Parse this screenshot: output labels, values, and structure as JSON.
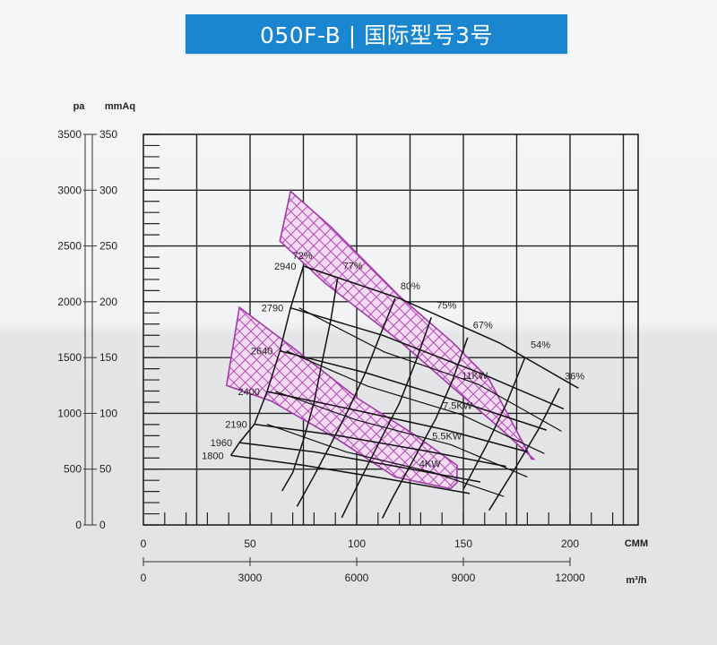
{
  "title": "050F-B | 国际型号3号",
  "chart_data": {
    "type": "line",
    "title": "050F-B | 国际型号3号",
    "y_axis_left": {
      "label": "pa",
      "range": [
        0,
        3500
      ],
      "ticks": [
        "0",
        "500",
        "1000",
        "1500",
        "2000",
        "2500",
        "3000",
        "3500"
      ]
    },
    "y_axis_right": {
      "label": "mmAq",
      "range": [
        0,
        350
      ],
      "ticks": [
        "0",
        "50",
        "100",
        "150",
        "200",
        "250",
        "300",
        "350"
      ]
    },
    "x_axis_primary": {
      "label": "CMM",
      "range": [
        0,
        200
      ],
      "ticks": [
        "0",
        "50",
        "100",
        "150",
        "200"
      ]
    },
    "x_axis_secondary": {
      "label": "m³/h",
      "range": [
        0,
        12000
      ],
      "ticks": [
        "0",
        "3000",
        "6000",
        "9000",
        "12000"
      ]
    },
    "grid": true,
    "speed_curves": [
      {
        "label": "1800",
        "points": [
          [
            41,
            623
          ],
          [
            75,
            535
          ],
          [
            115,
            410
          ],
          [
            153,
            282
          ]
        ]
      },
      {
        "label": "1960",
        "points": [
          [
            45,
            738
          ],
          [
            80,
            655
          ],
          [
            120,
            520
          ],
          [
            158,
            385
          ]
        ]
      },
      {
        "label": "2190",
        "points": [
          [
            52,
            902
          ],
          [
            90,
            805
          ],
          [
            132,
            665
          ],
          [
            170,
            525
          ]
        ]
      },
      {
        "label": "2400",
        "points": [
          [
            58,
            1195
          ],
          [
            98,
            1035
          ],
          [
            141,
            855
          ],
          [
            180,
            655
          ]
        ]
      },
      {
        "label": "2640",
        "points": [
          [
            64,
            1560
          ],
          [
            105,
            1360
          ],
          [
            150,
            1095
          ],
          [
            189,
            850
          ]
        ]
      },
      {
        "label": "2790",
        "points": [
          [
            69,
            1945
          ],
          [
            112,
            1700
          ],
          [
            158,
            1360
          ],
          [
            197,
            1040
          ]
        ]
      },
      {
        "label": "2940",
        "points": [
          [
            75,
            2320
          ],
          [
            120,
            2030
          ],
          [
            167,
            1630
          ],
          [
            204,
            1225
          ]
        ]
      }
    ],
    "efficiency_curves": [
      {
        "label": "72%",
        "points": [
          [
            75,
            2320
          ],
          [
            69,
            1945
          ],
          [
            64,
            1560
          ],
          [
            58,
            1195
          ],
          [
            52,
            902
          ],
          [
            45,
            738
          ],
          [
            41,
            623
          ]
        ]
      },
      {
        "label": "77%",
        "points": [
          [
            91,
            2210
          ],
          [
            88,
            1850
          ],
          [
            84,
            1480
          ],
          [
            80,
            1100
          ],
          [
            75,
            760
          ],
          [
            70,
            470
          ],
          [
            65,
            305
          ]
        ]
      },
      {
        "label": "80%",
        "points": [
          [
            118,
            2030
          ],
          [
            111,
            1700
          ],
          [
            104,
            1360
          ],
          [
            96,
            1030
          ],
          [
            88,
            730
          ],
          [
            80,
            440
          ],
          [
            72,
            165
          ]
        ]
      },
      {
        "label": "75%",
        "points": [
          [
            135,
            1860
          ],
          [
            128,
            1480
          ],
          [
            120,
            1090
          ],
          [
            110,
            720
          ],
          [
            100,
            340
          ],
          [
            93,
            65
          ]
        ]
      },
      {
        "label": "67%",
        "points": [
          [
            152,
            1680
          ],
          [
            145,
            1300
          ],
          [
            137,
            950
          ],
          [
            127,
            600
          ],
          [
            117,
            250
          ],
          [
            112,
            60
          ]
        ]
      },
      {
        "label": "54%",
        "points": [
          [
            179,
            1505
          ],
          [
            170,
            1080
          ],
          [
            161,
            720
          ],
          [
            150,
            320
          ]
        ]
      },
      {
        "label": "36%",
        "points": [
          [
            195,
            1225
          ],
          [
            185,
            850
          ],
          [
            175,
            530
          ],
          [
            162,
            130
          ]
        ]
      }
    ],
    "power_lines": [
      {
        "label": "4KW",
        "points": [
          [
            58,
            902
          ],
          [
            95,
            655
          ],
          [
            136,
            470
          ],
          [
            169,
            255
          ]
        ]
      },
      {
        "label": "5.5KW",
        "points": [
          [
            62,
            1195
          ],
          [
            100,
            940
          ],
          [
            144,
            720
          ],
          [
            180,
            430
          ]
        ]
      },
      {
        "label": "7.5KW",
        "points": [
          [
            67,
            1560
          ],
          [
            105,
            1245
          ],
          [
            149,
            990
          ],
          [
            188,
            640
          ]
        ]
      },
      {
        "label": "11KW",
        "points": [
          [
            73,
            1945
          ],
          [
            113,
            1550
          ],
          [
            157,
            1260
          ],
          [
            196,
            840
          ]
        ]
      }
    ],
    "operating_bands": [
      {
        "name": "upper",
        "upper": [
          [
            69,
            2990
          ],
          [
            88,
            2670
          ],
          [
            120,
            2050
          ],
          [
            145,
            1635
          ],
          [
            162,
            1305
          ],
          [
            182,
            590
          ]
        ],
        "lower": [
          [
            64,
            2545
          ],
          [
            85,
            2170
          ],
          [
            120,
            1650
          ],
          [
            146,
            1215
          ],
          [
            167,
            870
          ],
          [
            183,
            590
          ]
        ]
      },
      {
        "name": "lower",
        "upper": [
          [
            45,
            1950
          ],
          [
            70,
            1590
          ],
          [
            100,
            1140
          ],
          [
            127,
            810
          ],
          [
            147,
            535
          ]
        ],
        "lower": [
          [
            39,
            1250
          ],
          [
            60,
            1110
          ],
          [
            90,
            780
          ],
          [
            118,
            430
          ],
          [
            144,
            325
          ],
          [
            147,
            380
          ]
        ]
      }
    ]
  }
}
